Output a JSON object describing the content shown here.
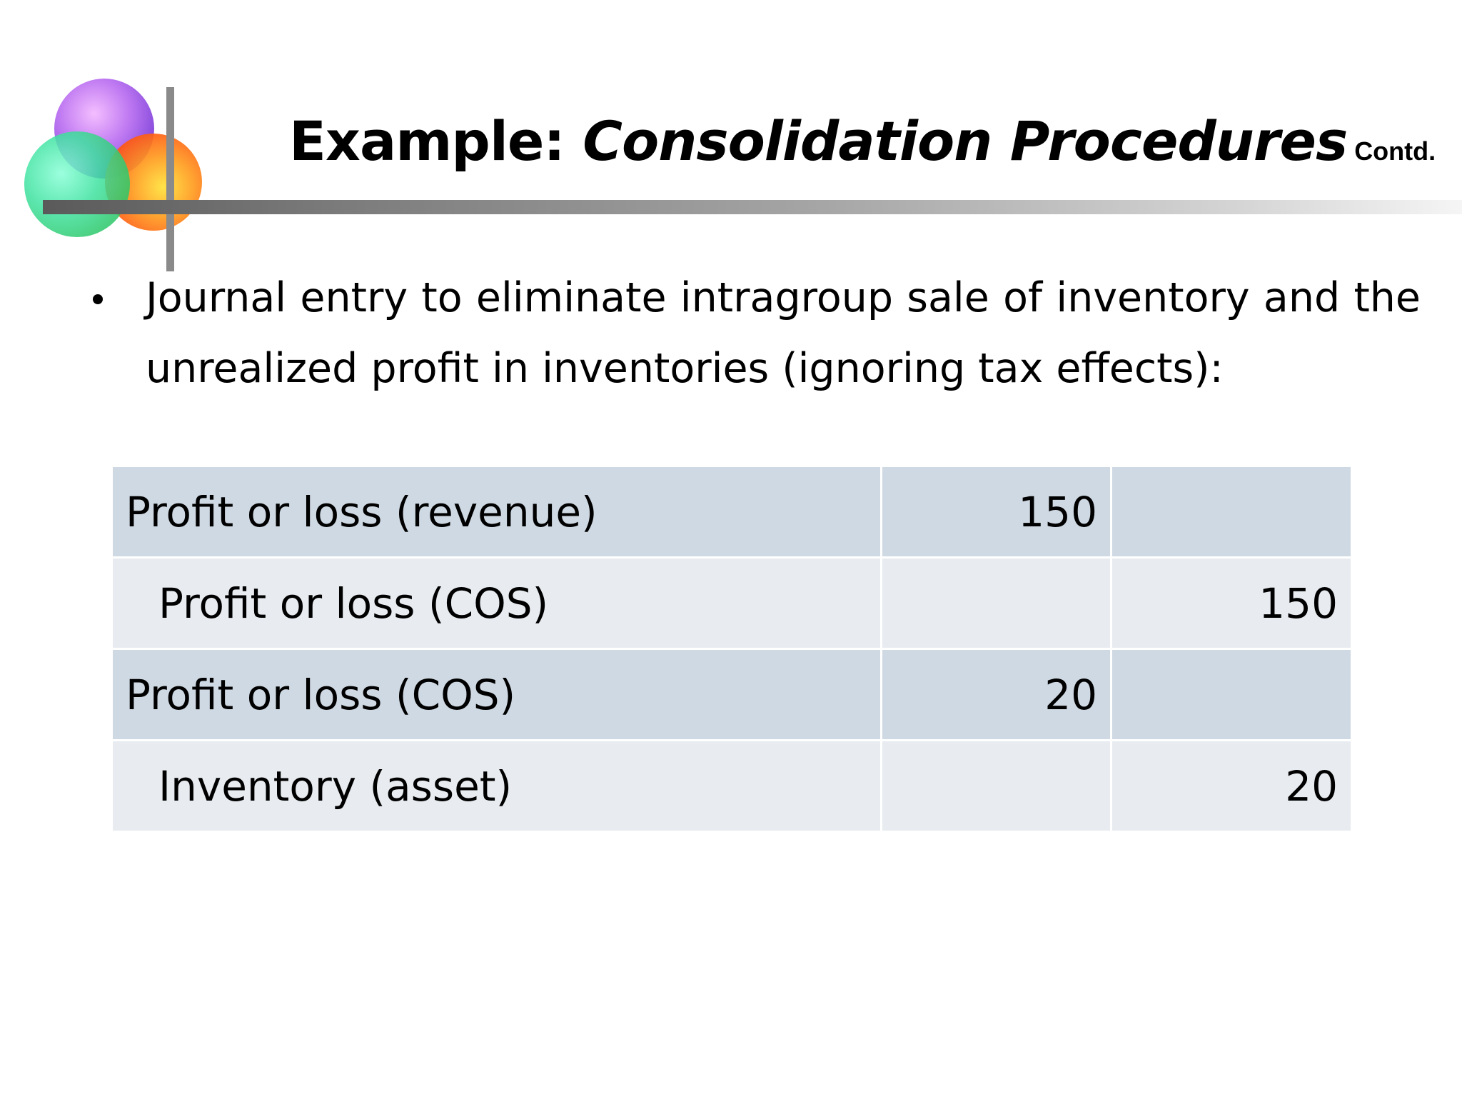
{
  "slide": {
    "title_regular": "Example: ",
    "title_italic": "Consolidation Procedures",
    "title_suffix": "Contd.",
    "bullet": "Journal entry to eliminate intragroup sale of inventory and the unrealized profit in inventories (ignoring tax effects):"
  },
  "journal": {
    "rows": [
      {
        "account": "Profit or loss (revenue)",
        "debit": "150",
        "credit": ""
      },
      {
        "account": "Profit or loss (COS)",
        "debit": "",
        "credit": "150"
      },
      {
        "account": "Profit or loss (COS)",
        "debit": "20",
        "credit": ""
      },
      {
        "account": "Inventory (asset)",
        "debit": "",
        "credit": "20"
      }
    ]
  },
  "colors": {
    "row_dark": "#cfd9e3",
    "row_light": "#e8ecf0"
  }
}
